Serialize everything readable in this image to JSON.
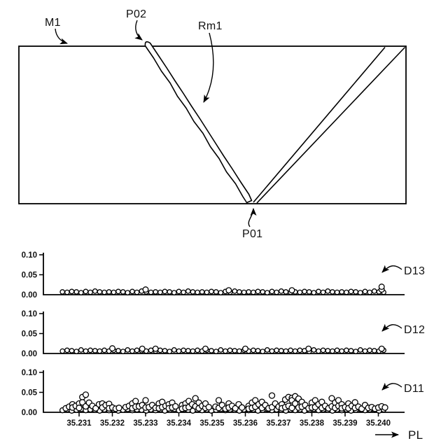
{
  "figure": {
    "labels": {
      "m1": "M1",
      "p02": "P02",
      "rm1": "Rm1",
      "p01": "P01",
      "pl": "PL"
    }
  },
  "chart_data": [
    {
      "id": "D13",
      "type": "scatter",
      "label": "D13",
      "ylim": [
        0,
        0.1
      ],
      "ytick_labels": [
        "0.00",
        "0.05",
        "0.10"
      ],
      "ytick_values": [
        0,
        0.05,
        0.1
      ],
      "xlim": [
        35.2303,
        35.2405
      ],
      "base_row": {
        "x_start": 35.2305,
        "x_step": 0.00014,
        "n": 70,
        "ys": [
          0.007,
          0.006,
          0.008,
          0.007,
          0.005,
          0.008,
          0.006,
          0.009,
          0.007,
          0.006,
          0.007,
          0.006,
          0.008,
          0.007,
          0.005,
          0.008,
          0.006,
          0.009,
          0.007,
          0.006,
          0.007,
          0.006,
          0.008,
          0.007,
          0.005,
          0.008,
          0.006,
          0.009,
          0.007,
          0.006,
          0.007,
          0.006,
          0.008,
          0.007,
          0.005,
          0.008,
          0.006,
          0.009,
          0.007,
          0.006,
          0.007,
          0.006,
          0.008,
          0.007,
          0.005,
          0.008,
          0.006,
          0.009,
          0.007,
          0.006,
          0.007,
          0.006,
          0.008,
          0.007,
          0.005,
          0.008,
          0.006,
          0.009,
          0.007,
          0.006,
          0.007,
          0.006,
          0.008,
          0.007,
          0.005,
          0.008,
          0.006,
          0.009,
          0.007,
          0.006
        ]
      },
      "points": [
        [
          35.233,
          0.013
        ],
        [
          35.2355,
          0.011
        ],
        [
          35.2374,
          0.011
        ],
        [
          35.2401,
          0.013
        ],
        [
          35.2401,
          0.02
        ]
      ]
    },
    {
      "id": "D12",
      "type": "scatter",
      "label": "D12",
      "ylim": [
        0,
        0.1
      ],
      "ytick_labels": [
        "0.00",
        "0.05",
        "0.10"
      ],
      "ytick_values": [
        0,
        0.05,
        0.1
      ],
      "xlim": [
        35.2303,
        35.2405
      ],
      "base_row": {
        "x_start": 35.2305,
        "x_step": 0.00014,
        "n": 70,
        "ys": [
          0.006,
          0.008,
          0.007,
          0.005,
          0.009,
          0.006,
          0.008,
          0.007,
          0.006,
          0.008,
          0.006,
          0.008,
          0.007,
          0.005,
          0.009,
          0.006,
          0.008,
          0.007,
          0.006,
          0.008,
          0.006,
          0.008,
          0.007,
          0.005,
          0.009,
          0.006,
          0.008,
          0.007,
          0.006,
          0.008,
          0.006,
          0.008,
          0.007,
          0.005,
          0.009,
          0.006,
          0.008,
          0.007,
          0.006,
          0.008,
          0.006,
          0.008,
          0.007,
          0.005,
          0.009,
          0.006,
          0.008,
          0.007,
          0.006,
          0.008,
          0.006,
          0.008,
          0.007,
          0.005,
          0.009,
          0.006,
          0.008,
          0.007,
          0.006,
          0.008,
          0.006,
          0.008,
          0.007,
          0.005,
          0.009,
          0.006,
          0.008,
          0.007,
          0.006,
          0.008
        ]
      },
      "points": [
        [
          35.232,
          0.013
        ],
        [
          35.2329,
          0.012
        ],
        [
          35.2333,
          0.012
        ],
        [
          35.2348,
          0.012
        ],
        [
          35.236,
          0.012
        ],
        [
          35.2379,
          0.012
        ],
        [
          35.2401,
          0.012
        ]
      ]
    },
    {
      "id": "D11",
      "type": "scatter",
      "label": "D11",
      "ylim": [
        0,
        0.1
      ],
      "ytick_labels": [
        "0.00",
        "0.05",
        "0.10"
      ],
      "ytick_values": [
        0,
        0.05,
        0.1
      ],
      "xlim": [
        35.2303,
        35.2405
      ],
      "xtick_values": [
        35.231,
        35.232,
        35.233,
        35.234,
        35.235,
        35.236,
        35.237,
        35.238,
        35.239,
        35.24
      ],
      "xtick_labels": [
        "35.231",
        "35.232",
        "35.233",
        "35.234",
        "35.235",
        "35.236",
        "35.237",
        "35.238",
        "35.239",
        "35.240"
      ],
      "x_axis_label": "PL",
      "base_row": {
        "x_start": 35.2305,
        "x_step": 0.00014,
        "n": 70,
        "ys": [
          0.005,
          0.007,
          0.004,
          0.006,
          0.008,
          0.005,
          0.007,
          0.006,
          0.004,
          0.007,
          0.005,
          0.007,
          0.004,
          0.006,
          0.008,
          0.005,
          0.007,
          0.006,
          0.004,
          0.007,
          0.005,
          0.007,
          0.004,
          0.006,
          0.008,
          0.005,
          0.007,
          0.006,
          0.004,
          0.007,
          0.005,
          0.007,
          0.004,
          0.006,
          0.008,
          0.005,
          0.007,
          0.006,
          0.004,
          0.007,
          0.005,
          0.007,
          0.004,
          0.006,
          0.008,
          0.005,
          0.007,
          0.006,
          0.004,
          0.007,
          0.005,
          0.007,
          0.004,
          0.006,
          0.008,
          0.005,
          0.007,
          0.006,
          0.004,
          0.007,
          0.005,
          0.007,
          0.004,
          0.006,
          0.008,
          0.005,
          0.007,
          0.006,
          0.004,
          0.007
        ]
      },
      "points": [
        [
          35.2306,
          0.01
        ],
        [
          35.2307,
          0.014
        ],
        [
          35.2308,
          0.02
        ],
        [
          35.2308,
          0.012
        ],
        [
          35.2309,
          0.016
        ],
        [
          35.231,
          0.022
        ],
        [
          35.231,
          0.011
        ],
        [
          35.2311,
          0.038
        ],
        [
          35.2311,
          0.025
        ],
        [
          35.2312,
          0.044
        ],
        [
          35.2312,
          0.015
        ],
        [
          35.2313,
          0.024
        ],
        [
          35.2314,
          0.016
        ],
        [
          35.2315,
          0.01
        ],
        [
          35.2316,
          0.02
        ],
        [
          35.2317,
          0.022
        ],
        [
          35.2317,
          0.012
        ],
        [
          35.2318,
          0.018
        ],
        [
          35.2319,
          0.021
        ],
        [
          35.2319,
          0.01
        ],
        [
          35.232,
          0.012
        ],
        [
          35.2321,
          0.009
        ],
        [
          35.2322,
          0.011
        ],
        [
          35.2324,
          0.013
        ],
        [
          35.2325,
          0.016
        ],
        [
          35.2326,
          0.022
        ],
        [
          35.2326,
          0.01
        ],
        [
          35.2327,
          0.028
        ],
        [
          35.2327,
          0.014
        ],
        [
          35.2328,
          0.015
        ],
        [
          35.2329,
          0.018
        ],
        [
          35.233,
          0.03
        ],
        [
          35.233,
          0.012
        ],
        [
          35.2331,
          0.013
        ],
        [
          35.2332,
          0.018
        ],
        [
          35.2333,
          0.011
        ],
        [
          35.2334,
          0.022
        ],
        [
          35.2334,
          0.01
        ],
        [
          35.2335,
          0.026
        ],
        [
          35.2335,
          0.013
        ],
        [
          35.2336,
          0.016
        ],
        [
          35.2337,
          0.02
        ],
        [
          35.2337,
          0.01
        ],
        [
          35.2338,
          0.024
        ],
        [
          35.2338,
          0.012
        ],
        [
          35.2339,
          0.015
        ],
        [
          35.2341,
          0.018
        ],
        [
          35.2341,
          0.009
        ],
        [
          35.2342,
          0.022
        ],
        [
          35.2342,
          0.011
        ],
        [
          35.2343,
          0.028
        ],
        [
          35.2343,
          0.013
        ],
        [
          35.2344,
          0.02
        ],
        [
          35.2345,
          0.035
        ],
        [
          35.2345,
          0.015
        ],
        [
          35.2346,
          0.024
        ],
        [
          35.2346,
          0.01
        ],
        [
          35.2347,
          0.016
        ],
        [
          35.2348,
          0.011
        ],
        [
          35.2348,
          0.022
        ],
        [
          35.2349,
          0.013
        ],
        [
          35.2351,
          0.014
        ],
        [
          35.2352,
          0.03
        ],
        [
          35.2352,
          0.011
        ],
        [
          35.2353,
          0.018
        ],
        [
          35.2354,
          0.009
        ],
        [
          35.2355,
          0.022
        ],
        [
          35.2355,
          0.012
        ],
        [
          35.2356,
          0.016
        ],
        [
          35.2357,
          0.01
        ],
        [
          35.2358,
          0.02
        ],
        [
          35.2359,
          0.012
        ],
        [
          35.2361,
          0.016
        ],
        [
          35.2361,
          0.009
        ],
        [
          35.2362,
          0.024
        ],
        [
          35.2362,
          0.011
        ],
        [
          35.2363,
          0.03
        ],
        [
          35.2363,
          0.014
        ],
        [
          35.2364,
          0.02
        ],
        [
          35.2365,
          0.026
        ],
        [
          35.2365,
          0.011
        ],
        [
          35.2366,
          0.018
        ],
        [
          35.2367,
          0.01
        ],
        [
          35.2368,
          0.042
        ],
        [
          35.2368,
          0.013
        ],
        [
          35.2369,
          0.022
        ],
        [
          35.237,
          0.014
        ],
        [
          35.2371,
          0.02
        ],
        [
          35.2371,
          0.01
        ],
        [
          35.2372,
          0.032
        ],
        [
          35.2372,
          0.013
        ],
        [
          35.2373,
          0.038
        ],
        [
          35.2373,
          0.016
        ],
        [
          35.2374,
          0.036
        ],
        [
          35.2374,
          0.03
        ],
        [
          35.2374,
          0.011
        ],
        [
          35.2375,
          0.04
        ],
        [
          35.2375,
          0.022
        ],
        [
          35.2376,
          0.034
        ],
        [
          35.2376,
          0.012
        ],
        [
          35.2377,
          0.026
        ],
        [
          35.2377,
          0.014
        ],
        [
          35.2378,
          0.018
        ],
        [
          35.2379,
          0.01
        ],
        [
          35.238,
          0.024
        ],
        [
          35.238,
          0.012
        ],
        [
          35.2381,
          0.03
        ],
        [
          35.2381,
          0.013
        ],
        [
          35.2382,
          0.02
        ],
        [
          35.2383,
          0.026
        ],
        [
          35.2383,
          0.011
        ],
        [
          35.2384,
          0.016
        ],
        [
          35.2385,
          0.01
        ],
        [
          35.2386,
          0.035
        ],
        [
          35.2386,
          0.015
        ],
        [
          35.2387,
          0.024
        ],
        [
          35.2387,
          0.011
        ],
        [
          35.2388,
          0.03
        ],
        [
          35.2388,
          0.016
        ],
        [
          35.2389,
          0.02
        ],
        [
          35.2389,
          0.01
        ],
        [
          35.239,
          0.013
        ],
        [
          35.2391,
          0.022
        ],
        [
          35.2391,
          0.01
        ],
        [
          35.2392,
          0.016
        ],
        [
          35.2393,
          0.025
        ],
        [
          35.2393,
          0.011
        ],
        [
          35.2394,
          0.014
        ],
        [
          35.2395,
          0.009
        ],
        [
          35.2396,
          0.018
        ],
        [
          35.2397,
          0.011
        ],
        [
          35.2398,
          0.013
        ],
        [
          35.2399,
          0.009
        ],
        [
          35.24,
          0.012
        ],
        [
          35.2401,
          0.015
        ],
        [
          35.2402,
          0.012
        ]
      ]
    }
  ]
}
